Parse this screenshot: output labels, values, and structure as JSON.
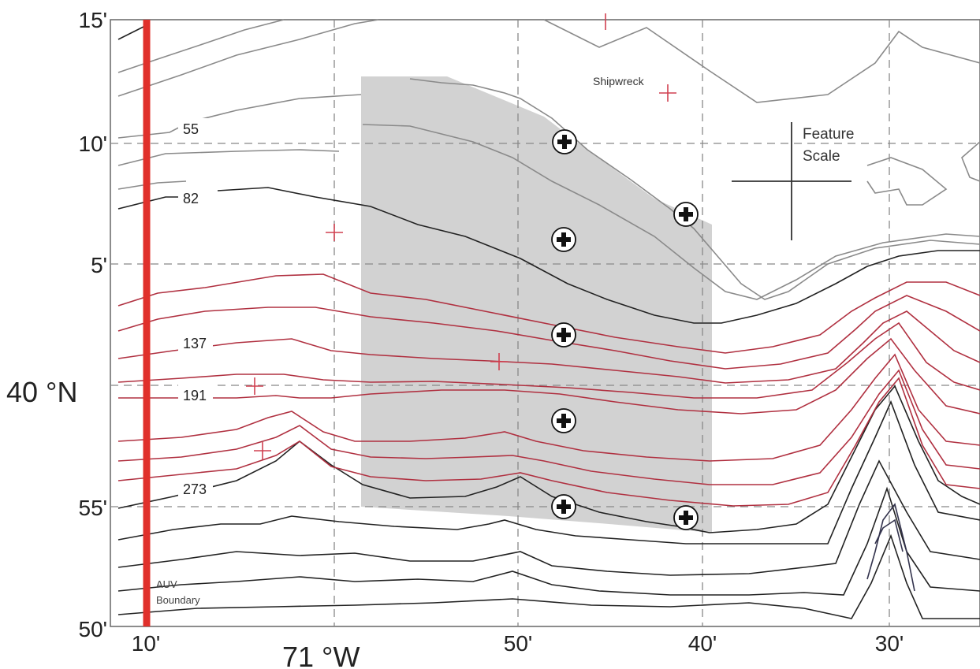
{
  "map": {
    "lat_ticks": [
      "15'",
      "10'",
      "5'",
      "55'",
      "50'"
    ],
    "lat_axis_label": "40 °N",
    "lon_ticks": [
      "10'",
      "50'",
      "40'",
      "30'"
    ],
    "lon_axis_label": "71 °W",
    "contour_labels": [
      "55",
      "82",
      "137",
      "191",
      "273"
    ],
    "annotations": {
      "shipwreck": "Shipwreck",
      "feature_scale_line1": "Feature",
      "feature_scale_line2": "Scale",
      "auv_line1": "AUV",
      "auv_line2": "Boundary"
    },
    "colors": {
      "auv_boundary": "#e0302b",
      "shaded_region": "#d2d2d2",
      "contour_gray": "#8a8a8a",
      "contour_black": "#222222",
      "contour_red": "#b03040",
      "contour_blue": "#33334d",
      "marker_red": "#d04050"
    },
    "markers_count": 8
  }
}
